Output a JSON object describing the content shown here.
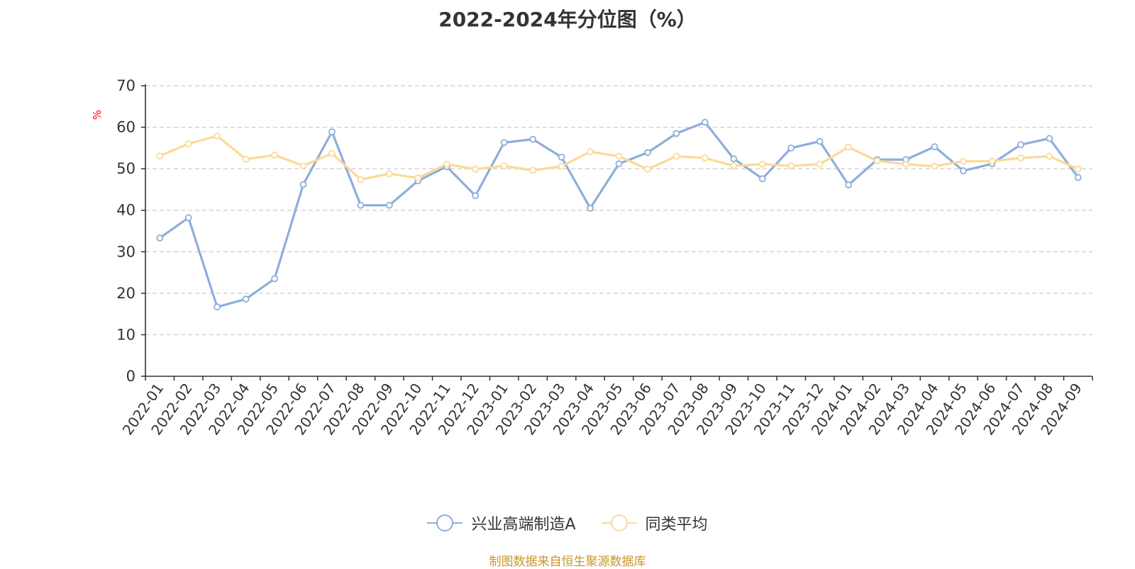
{
  "chart_data": {
    "type": "line",
    "title": "2022-2024年分位图（%）",
    "ylabel": "%",
    "xlabel": "",
    "ylim": [
      0,
      70
    ],
    "yticks": [
      0,
      10,
      20,
      30,
      40,
      50,
      60,
      70
    ],
    "grid": true,
    "legend_position": "bottom",
    "categories": [
      "2022-01",
      "2022-02",
      "2022-03",
      "2022-04",
      "2022-05",
      "2022-06",
      "2022-07",
      "2022-08",
      "2022-09",
      "2022-10",
      "2022-11",
      "2022-12",
      "2023-01",
      "2023-02",
      "2023-03",
      "2023-04",
      "2023-05",
      "2023-06",
      "2023-07",
      "2023-08",
      "2023-09",
      "2023-10",
      "2023-11",
      "2023-12",
      "2024-01",
      "2024-02",
      "2024-03",
      "2024-04",
      "2024-05",
      "2024-06",
      "2024-07",
      "2024-08",
      "2024-09"
    ],
    "series": [
      {
        "name": "兴业高端制造A",
        "color": "#8eaedb",
        "values": [
          33.3,
          38.2,
          16.7,
          18.6,
          23.5,
          46.2,
          58.9,
          41.2,
          41.2,
          47.1,
          50.5,
          43.5,
          56.3,
          57.1,
          52.8,
          40.5,
          51.2,
          53.9,
          58.5,
          61.2,
          52.4,
          47.6,
          55.0,
          56.6,
          46.1,
          52.2,
          52.2,
          55.3,
          49.5,
          51.2,
          55.8,
          57.3,
          47.9
        ]
      },
      {
        "name": "同类平均",
        "color": "#fbd997",
        "values": [
          53.1,
          56.0,
          57.9,
          52.3,
          53.3,
          50.7,
          53.7,
          47.4,
          48.8,
          47.8,
          51.1,
          49.9,
          50.7,
          49.6,
          50.6,
          54.1,
          53.0,
          49.9,
          53.0,
          52.6,
          50.7,
          51.1,
          50.7,
          51.1,
          55.2,
          51.9,
          51.1,
          50.6,
          51.8,
          51.8,
          52.6,
          53.0,
          49.9
        ]
      }
    ],
    "source_note": "制图数据来自恒生聚源数据库"
  },
  "colors": {
    "axis": "#333333",
    "grid": "#cccccc",
    "unit": "#ff0000",
    "source": "#c8962a"
  }
}
